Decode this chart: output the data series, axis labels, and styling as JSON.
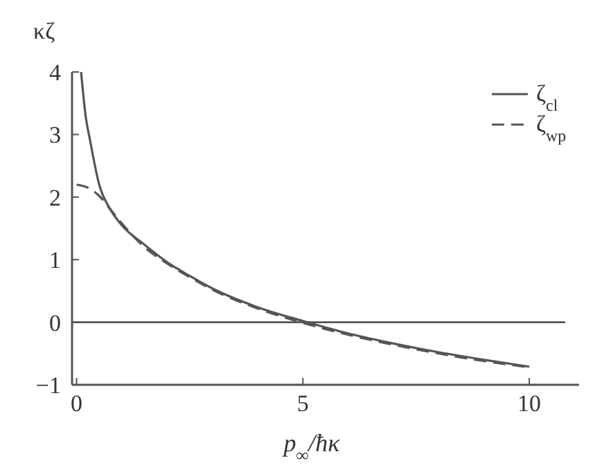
{
  "chart_data": {
    "type": "line",
    "xlabel": "p$_{∞}$/ħκ",
    "ylabel": "κζ",
    "xlim": [
      -0.1,
      11.1
    ],
    "ylim": [
      -1,
      4
    ],
    "xticks": [
      0,
      5,
      10
    ],
    "yticks": [
      -1,
      0,
      1,
      2,
      3,
      4
    ],
    "legend": "top right",
    "grid": false,
    "ref_lines": [
      {
        "axis": "y",
        "value": 0,
        "color": "#555555"
      }
    ],
    "series": [
      {
        "name": "ζ$_{cl}$",
        "color": "#555555",
        "line_style": "solid",
        "x": [
          0.1,
          0.2,
          0.3,
          0.5,
          0.75,
          1,
          1.5,
          2,
          2.5,
          3,
          4,
          5,
          6,
          7,
          8,
          9,
          10
        ],
        "values": [
          4.0,
          3.3,
          2.9,
          2.2,
          1.8,
          1.55,
          1.24,
          0.96,
          0.74,
          0.54,
          0.24,
          0.02,
          -0.18,
          -0.34,
          -0.48,
          -0.6,
          -0.71
        ]
      },
      {
        "name": "ζ$_{wp}$",
        "color": "#555555",
        "line_style": "dashed",
        "x": [
          0,
          0.25,
          0.5,
          0.75,
          1,
          1.5,
          2,
          2.5,
          3,
          4,
          5,
          6,
          7,
          8,
          9,
          10
        ],
        "values": [
          2.2,
          2.15,
          2.02,
          1.8,
          1.58,
          1.2,
          0.94,
          0.72,
          0.52,
          0.22,
          -0.01,
          -0.2,
          -0.36,
          -0.5,
          -0.62,
          -0.72
        ]
      }
    ]
  }
}
